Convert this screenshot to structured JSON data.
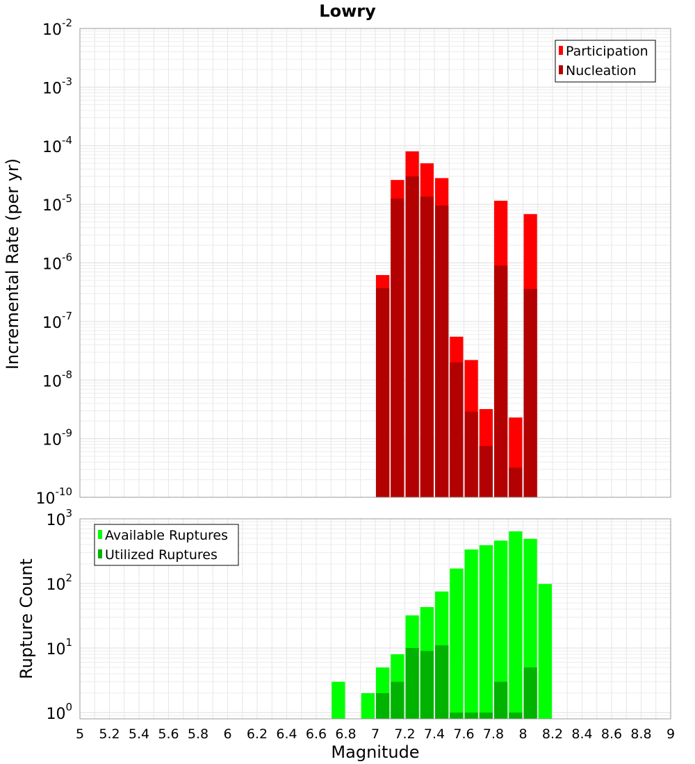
{
  "chart_data": [
    {
      "type": "bar",
      "title": "Lowry",
      "xlabel": "",
      "ylabel": "Incremental Rate (per yr)",
      "xlim": [
        5,
        9
      ],
      "ylim": [
        1e-10,
        0.01
      ],
      "yscale": "log",
      "bin_width": 0.1,
      "grid": true,
      "legend": "top-right",
      "colors": {
        "participation": "#ff0000",
        "nucleation": "#b30000"
      },
      "x": [
        7.05,
        7.15,
        7.25,
        7.35,
        7.45,
        7.55,
        7.65,
        7.75,
        7.85,
        7.95,
        8.05
      ],
      "series": [
        {
          "name": "Participation",
          "values": [
            6.2e-07,
            2.6e-05,
            8e-05,
            5e-05,
            2.8e-05,
            5.5e-08,
            2.2e-08,
            3.2e-09,
            1.15e-05,
            2.3e-09,
            6.8e-06
          ]
        },
        {
          "name": "Nucleation",
          "values": [
            3.7e-07,
            1.25e-05,
            3e-05,
            1.35e-05,
            9.5e-06,
            2e-08,
            2.9e-09,
            7.5e-10,
            9e-07,
            3.2e-10,
            3.6e-07
          ]
        }
      ],
      "yticks": {
        "base": "10",
        "exponents": [
          "-10",
          "-9",
          "-8",
          "-7",
          "-6",
          "-5",
          "-4",
          "-3",
          "-2"
        ]
      }
    },
    {
      "type": "bar",
      "title": "",
      "xlabel": "Magnitude",
      "ylabel": "Rupture Count",
      "xlim": [
        5,
        9
      ],
      "ylim": [
        0.8,
        1000
      ],
      "yscale": "log",
      "bin_width": 0.1,
      "grid": true,
      "legend": "top-left",
      "colors": {
        "available": "#00ff00",
        "utilized": "#00b300"
      },
      "x": [
        6.75,
        6.95,
        7.05,
        7.15,
        7.25,
        7.35,
        7.45,
        7.55,
        7.65,
        7.75,
        7.85,
        7.95,
        8.05,
        8.15
      ],
      "series": [
        {
          "name": "Available Ruptures",
          "values": [
            3,
            2,
            5,
            8,
            32,
            43,
            75,
            170,
            335,
            390,
            460,
            640,
            490,
            98
          ]
        },
        {
          "name": "Utilized Ruptures",
          "values": [
            0,
            0,
            2,
            3,
            10,
            9,
            11,
            1,
            1,
            1,
            3,
            1,
            5,
            0
          ]
        }
      ],
      "yticks": {
        "base": "10",
        "exponents": [
          "0",
          "1",
          "2",
          "3"
        ]
      },
      "xticks": [
        "5",
        "5.2",
        "5.4",
        "5.6",
        "5.8",
        "6",
        "6.2",
        "6.4",
        "6.6",
        "6.8",
        "7",
        "7.2",
        "7.4",
        "7.6",
        "7.8",
        "8",
        "8.2",
        "8.4",
        "8.6",
        "8.8",
        "9"
      ]
    }
  ]
}
